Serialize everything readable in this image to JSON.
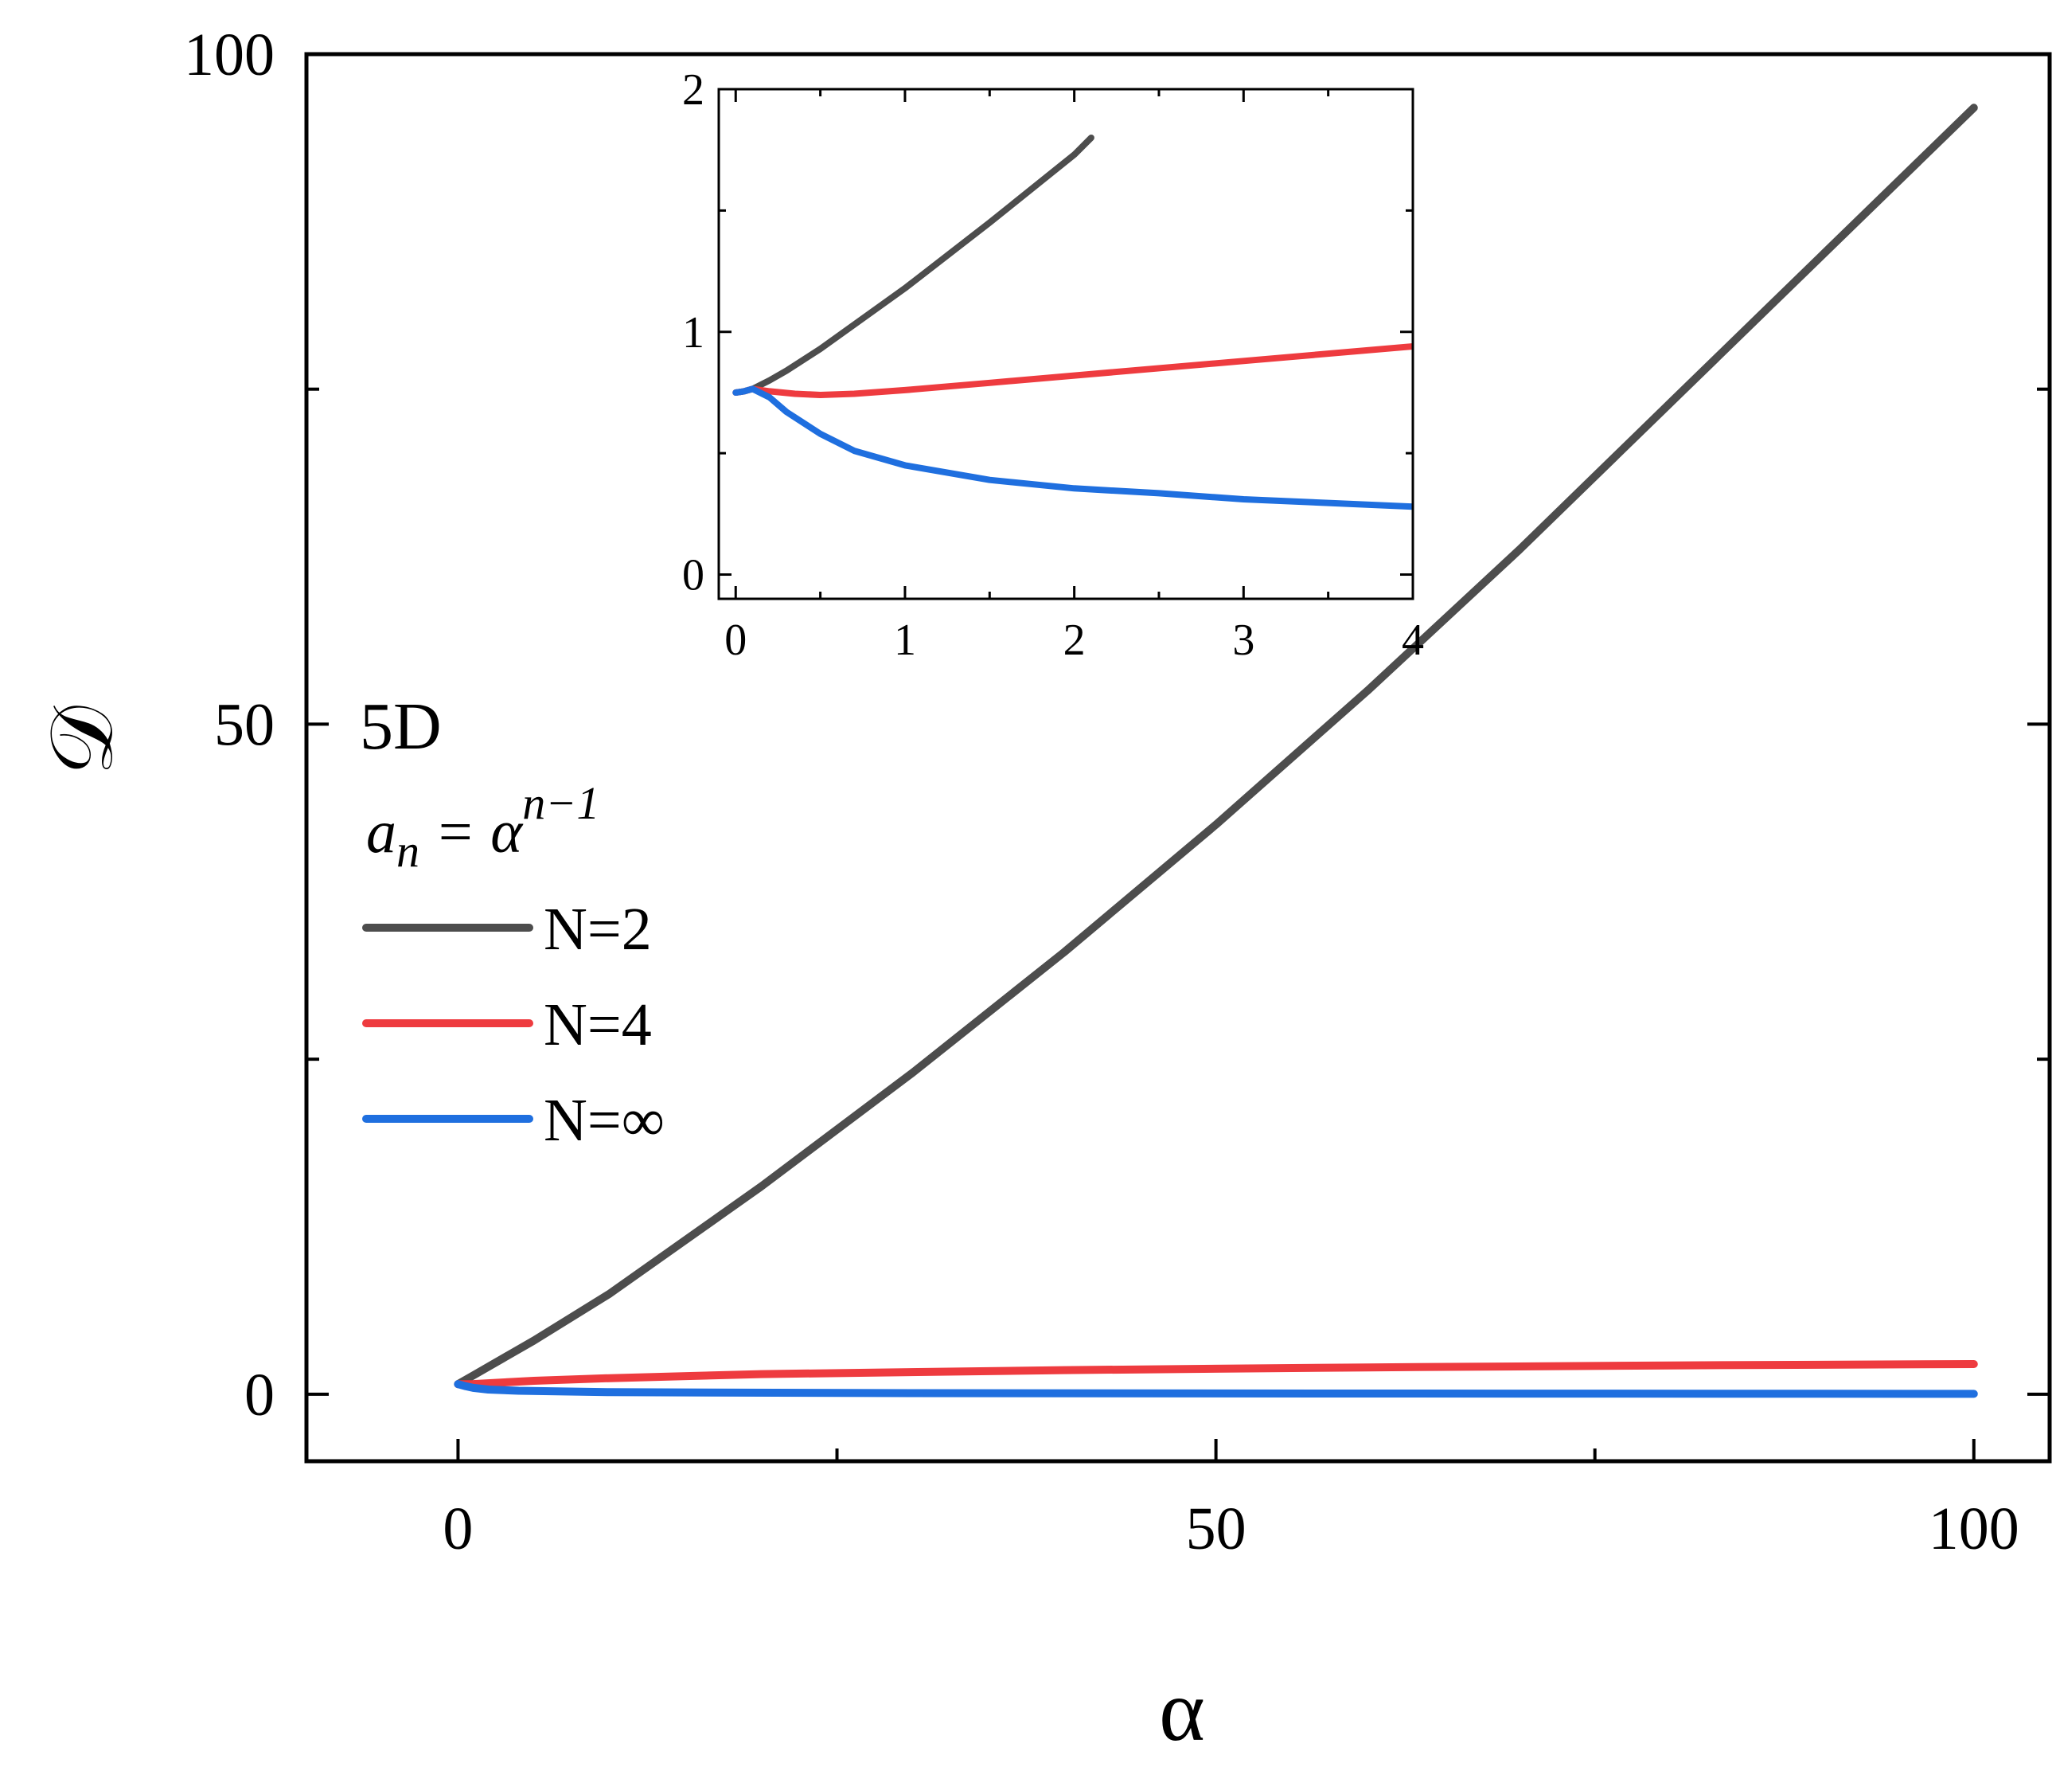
{
  "chart_data": [
    {
      "type": "line",
      "xlabel": "α",
      "ylabel": "𝒟",
      "xlim": [
        -10,
        105
      ],
      "ylim": [
        -5,
        100
      ],
      "xticks": [
        "0",
        "50",
        "100"
      ],
      "yticks": [
        "0",
        "50",
        "100"
      ],
      "annotation": "5D",
      "formula": {
        "a": "a",
        "sub": "n",
        "eq": " = α",
        "sup": "n−1"
      },
      "legend_placement": "center-left",
      "grid": false,
      "series": [
        {
          "name": "N=2",
          "color": "#4d4d4d",
          "x": [
            0,
            1,
            5,
            10,
            20,
            30,
            40,
            50,
            60,
            70,
            80,
            90,
            100
          ],
          "y": [
            0.75,
            1.4,
            4.0,
            7.5,
            15.5,
            24,
            33,
            42.5,
            52.5,
            63,
            74,
            85,
            96
          ]
        },
        {
          "name": "N=4",
          "color": "#ee3b3f",
          "x": [
            0,
            1,
            5,
            10,
            20,
            40,
            60,
            80,
            100
          ],
          "y": [
            0.75,
            0.76,
            1.0,
            1.2,
            1.5,
            1.8,
            2.0,
            2.15,
            2.25
          ]
        },
        {
          "name": "N=∞",
          "color": "#1f6fdf",
          "x": [
            0,
            0.5,
            1,
            2,
            4,
            10,
            30,
            60,
            100
          ],
          "y": [
            0.75,
            0.6,
            0.47,
            0.35,
            0.26,
            0.15,
            0.08,
            0.05,
            0.03
          ]
        }
      ]
    },
    {
      "type": "line",
      "inset": true,
      "xlim": [
        -0.1,
        4
      ],
      "ylim": [
        -0.1,
        2
      ],
      "xticks": [
        "0",
        "1",
        "2",
        "3",
        "4"
      ],
      "yticks": [
        "0",
        "1",
        "2"
      ],
      "series": [
        {
          "name": "N=2",
          "color": "#4d4d4d",
          "x": [
            0,
            0.05,
            0.1,
            0.2,
            0.3,
            0.5,
            1.0,
            1.5,
            2.0,
            2.1
          ],
          "y": [
            0.75,
            0.755,
            0.765,
            0.8,
            0.84,
            0.93,
            1.18,
            1.45,
            1.73,
            1.8
          ]
        },
        {
          "name": "N=4",
          "color": "#ee3b3f",
          "x": [
            0,
            0.05,
            0.1,
            0.2,
            0.35,
            0.5,
            0.7,
            1.0,
            1.5,
            2.0,
            3.0,
            4.0
          ],
          "y": [
            0.75,
            0.755,
            0.765,
            0.755,
            0.745,
            0.74,
            0.745,
            0.76,
            0.79,
            0.82,
            0.88,
            0.94
          ]
        },
        {
          "name": "N=∞",
          "color": "#1f6fdf",
          "x": [
            0,
            0.05,
            0.1,
            0.2,
            0.3,
            0.5,
            0.7,
            1.0,
            1.5,
            2.0,
            2.5,
            3.0,
            3.5,
            4.0
          ],
          "y": [
            0.75,
            0.755,
            0.765,
            0.73,
            0.67,
            0.58,
            0.51,
            0.45,
            0.39,
            0.355,
            0.335,
            0.31,
            0.295,
            0.28
          ]
        }
      ]
    }
  ]
}
